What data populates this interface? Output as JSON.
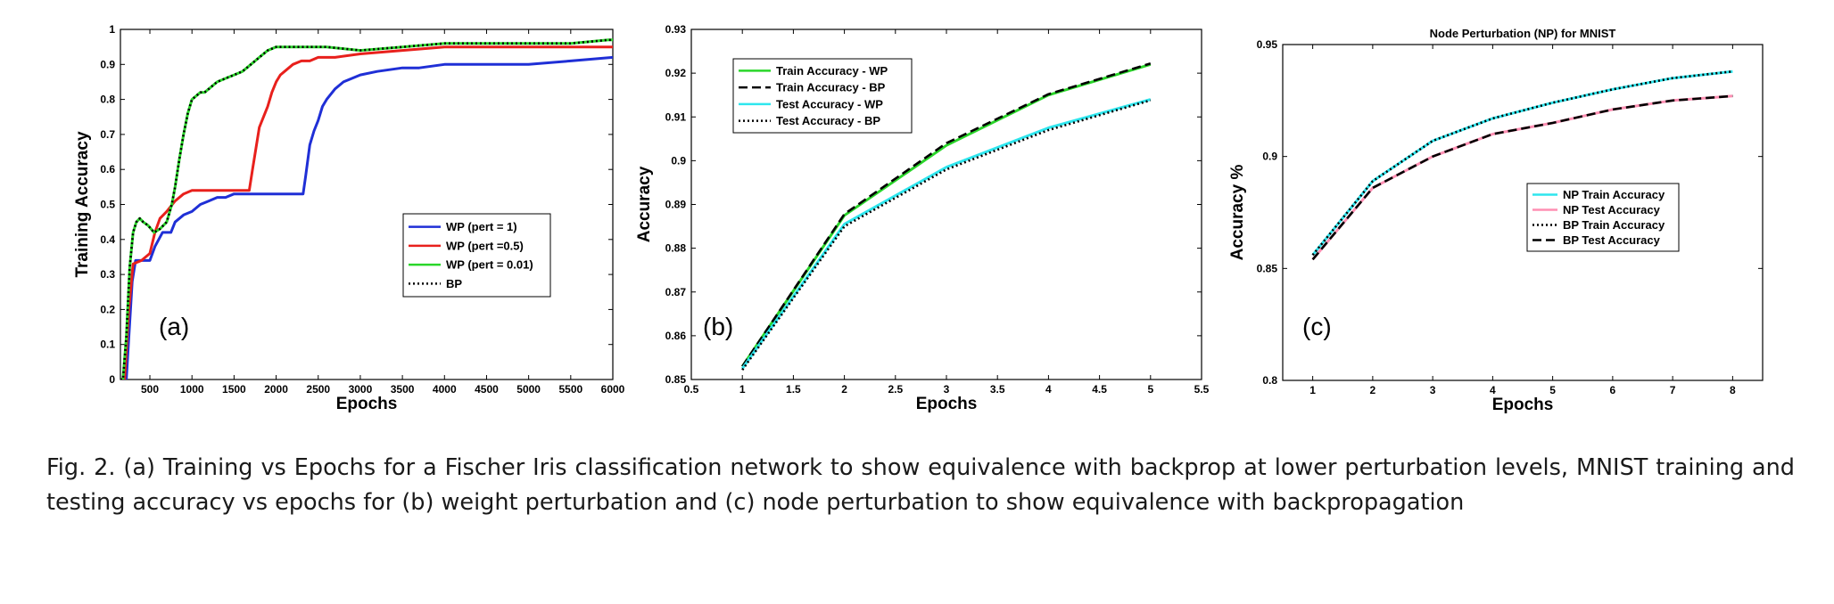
{
  "chart_data": [
    {
      "type": "line",
      "panel_label": "(a)",
      "title": "",
      "xlabel": "Epochs",
      "ylabel": "Training Accuracy",
      "xlim": [
        150,
        6000
      ],
      "ylim": [
        0,
        1
      ],
      "xticks": [
        500,
        1000,
        1500,
        2000,
        2500,
        3000,
        3500,
        4000,
        4500,
        5000,
        5500,
        6000
      ],
      "yticks": [
        0,
        0.1,
        0.2,
        0.3,
        0.4,
        0.5,
        0.6,
        0.7,
        0.8,
        0.9,
        1
      ],
      "legend_position": "center-right",
      "series": [
        {
          "name": "WP (pert = 1)",
          "color": "#1f2fd6",
          "style": "solid",
          "x": [
            150,
            220,
            290,
            330,
            500,
            560,
            650,
            750,
            800,
            900,
            1000,
            1100,
            1200,
            1300,
            1400,
            1500,
            1700,
            2000,
            2200,
            2320,
            2350,
            2400,
            2450,
            2500,
            2550,
            2600,
            2700,
            2800,
            2900,
            3000,
            3200,
            3500,
            3700,
            4000,
            5000,
            5500,
            6000
          ],
          "y": [
            0,
            0,
            0.28,
            0.34,
            0.34,
            0.38,
            0.42,
            0.42,
            0.45,
            0.47,
            0.48,
            0.5,
            0.51,
            0.52,
            0.52,
            0.53,
            0.53,
            0.53,
            0.53,
            0.53,
            0.58,
            0.67,
            0.71,
            0.74,
            0.78,
            0.8,
            0.83,
            0.85,
            0.86,
            0.87,
            0.88,
            0.89,
            0.89,
            0.9,
            0.9,
            0.91,
            0.92
          ]
        },
        {
          "name": "WP (pert =0.5)",
          "color": "#e8201c",
          "style": "solid",
          "x": [
            150,
            200,
            250,
            300,
            400,
            500,
            560,
            620,
            700,
            800,
            900,
            1000,
            1200,
            1500,
            1680,
            1720,
            1760,
            1800,
            1900,
            1950,
            2000,
            2050,
            2100,
            2200,
            2300,
            2400,
            2500,
            2700,
            3000,
            3500,
            4000,
            5000,
            6000
          ],
          "y": [
            0,
            0,
            0.2,
            0.33,
            0.34,
            0.36,
            0.42,
            0.46,
            0.48,
            0.51,
            0.53,
            0.54,
            0.54,
            0.54,
            0.54,
            0.6,
            0.66,
            0.72,
            0.78,
            0.82,
            0.85,
            0.87,
            0.88,
            0.9,
            0.91,
            0.91,
            0.92,
            0.92,
            0.93,
            0.94,
            0.95,
            0.95,
            0.95
          ]
        },
        {
          "name": "WP (pert = 0.01)",
          "color": "#2ad62a",
          "style": "solid",
          "x": [
            150,
            180,
            220,
            260,
            300,
            340,
            380,
            420,
            480,
            550,
            620,
            700,
            760,
            800,
            850,
            900,
            950,
            1000,
            1050,
            1100,
            1150,
            1200,
            1300,
            1400,
            1500,
            1600,
            1700,
            1800,
            1900,
            2000,
            2300,
            2600,
            3000,
            3500,
            4000,
            4500,
            5000,
            5500,
            5950,
            6000
          ],
          "y": [
            0,
            0,
            0.12,
            0.32,
            0.42,
            0.45,
            0.46,
            0.45,
            0.44,
            0.42,
            0.43,
            0.45,
            0.5,
            0.55,
            0.63,
            0.7,
            0.76,
            0.8,
            0.81,
            0.82,
            0.82,
            0.83,
            0.85,
            0.86,
            0.87,
            0.88,
            0.9,
            0.92,
            0.94,
            0.95,
            0.95,
            0.95,
            0.94,
            0.95,
            0.96,
            0.96,
            0.96,
            0.96,
            0.97,
            0.97
          ]
        },
        {
          "name": "BP",
          "color": "#000000",
          "style": "dotted",
          "x": [
            150,
            180,
            220,
            260,
            300,
            340,
            380,
            420,
            480,
            550,
            620,
            700,
            760,
            800,
            850,
            900,
            950,
            1000,
            1050,
            1100,
            1150,
            1200,
            1300,
            1400,
            1500,
            1600,
            1700,
            1800,
            1900,
            2000,
            2300,
            2600,
            3000,
            3500,
            4000,
            4500,
            5000,
            5500,
            5950,
            6000
          ],
          "y": [
            0,
            0,
            0.12,
            0.32,
            0.42,
            0.45,
            0.46,
            0.45,
            0.44,
            0.42,
            0.43,
            0.45,
            0.5,
            0.55,
            0.63,
            0.7,
            0.76,
            0.8,
            0.81,
            0.82,
            0.82,
            0.83,
            0.85,
            0.86,
            0.87,
            0.88,
            0.9,
            0.92,
            0.94,
            0.95,
            0.95,
            0.95,
            0.94,
            0.95,
            0.96,
            0.96,
            0.96,
            0.96,
            0.97,
            0.97
          ]
        }
      ]
    },
    {
      "type": "line",
      "panel_label": "(b)",
      "title": "",
      "xlabel": "Epochs",
      "ylabel": "Accuracy",
      "xlim": [
        0.5,
        5.5
      ],
      "ylim": [
        0.85,
        0.93
      ],
      "xticks": [
        0.5,
        1,
        1.5,
        2,
        2.5,
        3,
        3.5,
        4,
        4.5,
        5,
        5.5
      ],
      "yticks": [
        0.85,
        0.86,
        0.87,
        0.88,
        0.89,
        0.9,
        0.91,
        0.92,
        0.93
      ],
      "legend_position": "top-left",
      "series": [
        {
          "name": "Train Accuracy - WP",
          "color": "#2ad62a",
          "style": "solid",
          "x": [
            1,
            2,
            3,
            4,
            5
          ],
          "y": [
            0.853,
            0.8875,
            0.9035,
            0.915,
            0.922
          ]
        },
        {
          "name": "Train Accuracy - BP",
          "color": "#000000",
          "style": "dashed",
          "x": [
            1,
            2,
            3,
            4,
            5
          ],
          "y": [
            0.853,
            0.8878,
            0.904,
            0.9152,
            0.9222
          ]
        },
        {
          "name": "Test Accuracy - WP",
          "color": "#2ee6ee",
          "style": "solid",
          "x": [
            1,
            2,
            3,
            4,
            5
          ],
          "y": [
            0.8525,
            0.8855,
            0.8985,
            0.9075,
            0.914
          ]
        },
        {
          "name": "Test Accuracy - BP",
          "color": "#000000",
          "style": "dotted",
          "x": [
            1,
            2,
            3,
            4,
            5
          ],
          "y": [
            0.8522,
            0.885,
            0.898,
            0.907,
            0.9138
          ]
        }
      ]
    },
    {
      "type": "line",
      "panel_label": "(c)",
      "title": "Node Perturbation (NP) for MNIST",
      "xlabel": "Epochs",
      "ylabel": "Accuracy %",
      "xlim": [
        0.5,
        8.5
      ],
      "ylim": [
        0.8,
        0.95
      ],
      "xticks": [
        1,
        2,
        3,
        4,
        5,
        6,
        7,
        8
      ],
      "yticks": [
        0.8,
        0.85,
        0.9,
        0.95
      ],
      "legend_position": "center-right",
      "series": [
        {
          "name": "NP Train Accuracy",
          "color": "#2ee6ee",
          "style": "solid",
          "x": [
            1,
            2,
            3,
            4,
            5,
            6,
            7,
            8
          ],
          "y": [
            0.856,
            0.889,
            0.907,
            0.917,
            0.924,
            0.93,
            0.935,
            0.938
          ]
        },
        {
          "name": "NP Test Accuracy",
          "color": "#ff8fb3",
          "style": "solid",
          "x": [
            1,
            2,
            3,
            4,
            5,
            6,
            7,
            8
          ],
          "y": [
            0.854,
            0.886,
            0.9,
            0.91,
            0.915,
            0.921,
            0.925,
            0.927
          ]
        },
        {
          "name": "BP Train Accuracy",
          "color": "#000000",
          "style": "dotted",
          "x": [
            1,
            2,
            3,
            4,
            5,
            6,
            7,
            8
          ],
          "y": [
            0.856,
            0.889,
            0.907,
            0.917,
            0.924,
            0.93,
            0.935,
            0.938
          ]
        },
        {
          "name": "BP Test Accuracy",
          "color": "#000000",
          "style": "dashed",
          "x": [
            1,
            2,
            3,
            4,
            5,
            6,
            7,
            8
          ],
          "y": [
            0.854,
            0.886,
            0.9,
            0.91,
            0.915,
            0.921,
            0.925,
            0.927
          ]
        }
      ]
    }
  ],
  "caption": "Fig. 2. (a) Training vs Epochs for a Fischer Iris classification network to show equivalence with backprop at lower perturbation levels, MNIST training and testing accuracy vs epochs for (b) weight perturbation and (c) node perturbation to show equivalence with backpropagation"
}
